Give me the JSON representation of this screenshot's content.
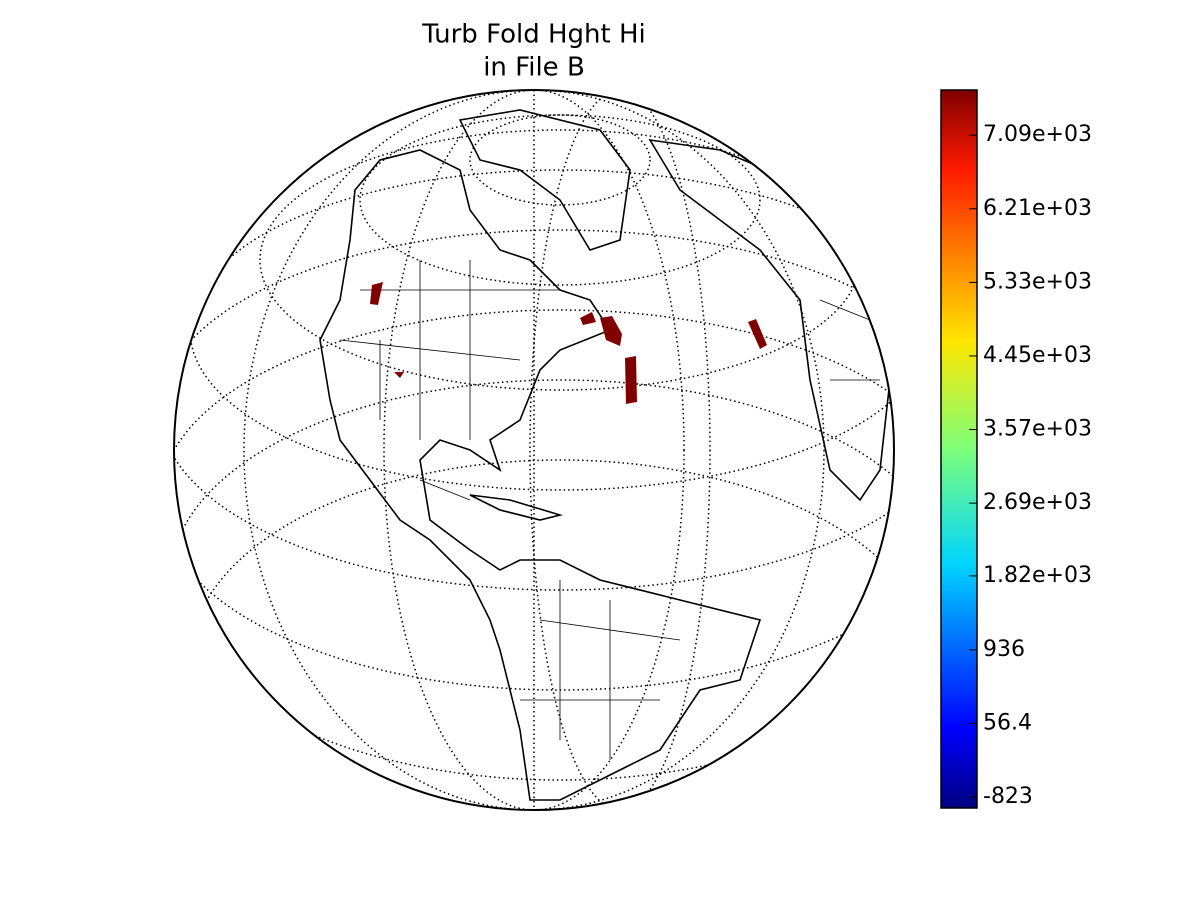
{
  "title": [
    "Turb Fold Hght Hi",
    "in File B"
  ],
  "colorbar": {
    "lim": [
      -955,
      7630
    ],
    "ticks": [
      {
        "value": -823,
        "label": "-823"
      },
      {
        "value": 56.4,
        "label": "56.4"
      },
      {
        "value": 936,
        "label": "936"
      },
      {
        "value": 1820,
        "label": "1.82e+03"
      },
      {
        "value": 2690,
        "label": "2.69e+03"
      },
      {
        "value": 3570,
        "label": "3.57e+03"
      },
      {
        "value": 4450,
        "label": "4.45e+03"
      },
      {
        "value": 5330,
        "label": "5.33e+03"
      },
      {
        "value": 6210,
        "label": "6.21e+03"
      },
      {
        "value": 7090,
        "label": "7.09e+03"
      }
    ]
  }
}
